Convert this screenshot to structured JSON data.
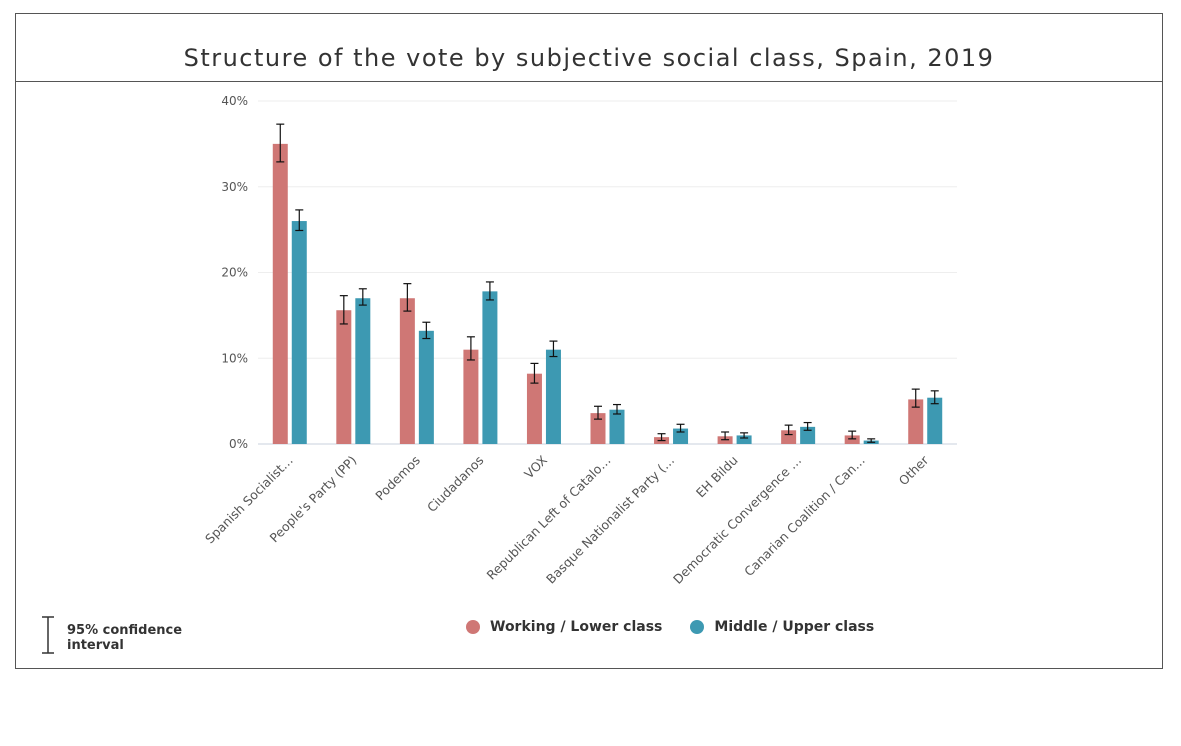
{
  "title": "Structure of the vote by subjective social class, Spain, 2019",
  "colors": {
    "working": "#cf7775",
    "middle": "#3d99b2"
  },
  "legend": {
    "ci_label": "95% confidence interval"
  },
  "chart_data": {
    "type": "bar",
    "title": "Structure of the vote by subjective social class, Spain, 2019",
    "xlabel": "",
    "ylabel": "",
    "ylim": [
      0,
      40
    ],
    "yticks": [
      "0%",
      "10%",
      "20%",
      "30%",
      "40%"
    ],
    "categories": [
      "Spanish Socialist…",
      "People's Party (PP)",
      "Podemos",
      "Ciudadanos",
      "VOX",
      "Republican Left of Catalo…",
      "Basque Nationalist Party (…",
      "EH Bildu",
      "Democratic Convergence …",
      "Canarian Coalition / Can…",
      "Other"
    ],
    "series": [
      {
        "name": "Working / Lower class",
        "values": [
          35.0,
          15.6,
          17.0,
          11.0,
          8.2,
          3.6,
          0.8,
          0.9,
          1.6,
          1.0,
          5.2
        ],
        "ci_low": [
          32.9,
          14.0,
          15.5,
          9.8,
          7.1,
          2.9,
          0.4,
          0.5,
          1.1,
          0.6,
          4.3
        ],
        "ci_high": [
          37.3,
          17.3,
          18.7,
          12.5,
          9.4,
          4.4,
          1.2,
          1.4,
          2.2,
          1.5,
          6.4
        ]
      },
      {
        "name": "Middle / Upper class",
        "values": [
          26.0,
          17.0,
          13.2,
          17.8,
          11.0,
          4.0,
          1.8,
          1.0,
          2.0,
          0.4,
          5.4
        ],
        "ci_low": [
          24.9,
          16.2,
          12.3,
          16.8,
          10.2,
          3.5,
          1.4,
          0.7,
          1.6,
          0.2,
          4.7
        ],
        "ci_high": [
          27.3,
          18.1,
          14.2,
          18.9,
          12.0,
          4.6,
          2.3,
          1.3,
          2.5,
          0.6,
          6.2
        ]
      }
    ],
    "grid": true,
    "legend_position": "bottom"
  }
}
